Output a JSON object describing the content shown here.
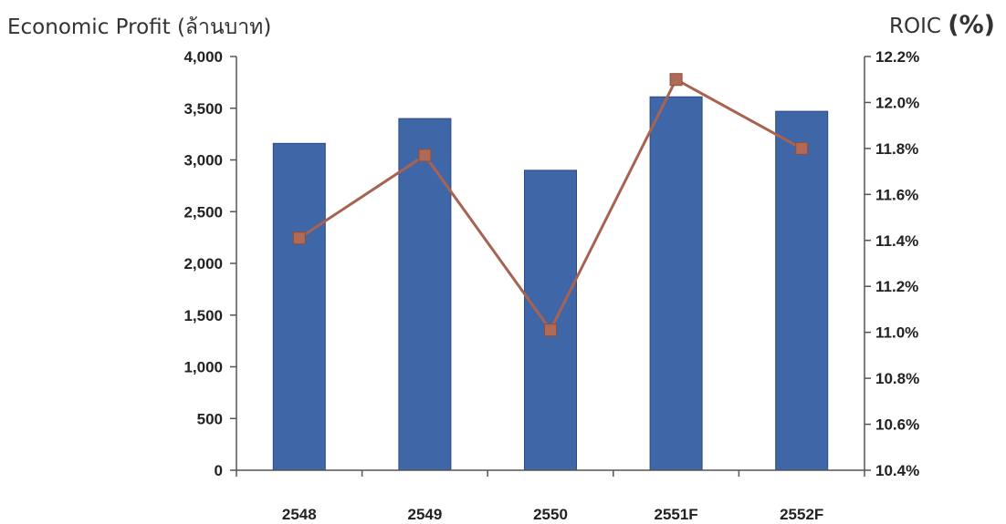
{
  "chart_data": {
    "type": "bar",
    "categories": [
      "2548",
      "2549",
      "2550",
      "2551F",
      "2552F"
    ],
    "series": [
      {
        "name": "Economic Profit (ล้านบาท)",
        "type": "bar",
        "axis": "left",
        "values": [
          3160,
          3400,
          2900,
          3610,
          3470
        ]
      },
      {
        "name": "ROIC (%)",
        "type": "line",
        "axis": "right",
        "values": [
          11.41,
          11.77,
          11.01,
          12.1,
          11.8
        ]
      }
    ],
    "left_axis": {
      "label": "Economic Profit (ล้านบาท)",
      "ylim": [
        0,
        4000
      ],
      "ticks": [
        0,
        500,
        1000,
        1500,
        2000,
        2500,
        3000,
        3500,
        4000
      ],
      "tick_labels": [
        "0",
        "500",
        "1,000",
        "1,500",
        "2,000",
        "2,500",
        "3,000",
        "3,500",
        "4,000"
      ]
    },
    "right_axis": {
      "label_text": "ROIC ",
      "label_unit": "(%)",
      "ylim": [
        10.4,
        12.2
      ],
      "ticks": [
        10.4,
        10.6,
        10.8,
        11.0,
        11.2,
        11.4,
        11.6,
        11.8,
        12.0,
        12.2
      ],
      "tick_labels": [
        "10.4%",
        "10.6%",
        "10.8%",
        "11.0%",
        "11.2%",
        "11.4%",
        "11.6%",
        "11.8%",
        "12.0%",
        "12.2%"
      ]
    },
    "grid": false,
    "legend": "none",
    "colors": {
      "bar": "#3F67A7",
      "bar_edge": "#2C4A7E",
      "line": "#A86350",
      "marker": "#B06A56",
      "axis": "#555555"
    }
  }
}
